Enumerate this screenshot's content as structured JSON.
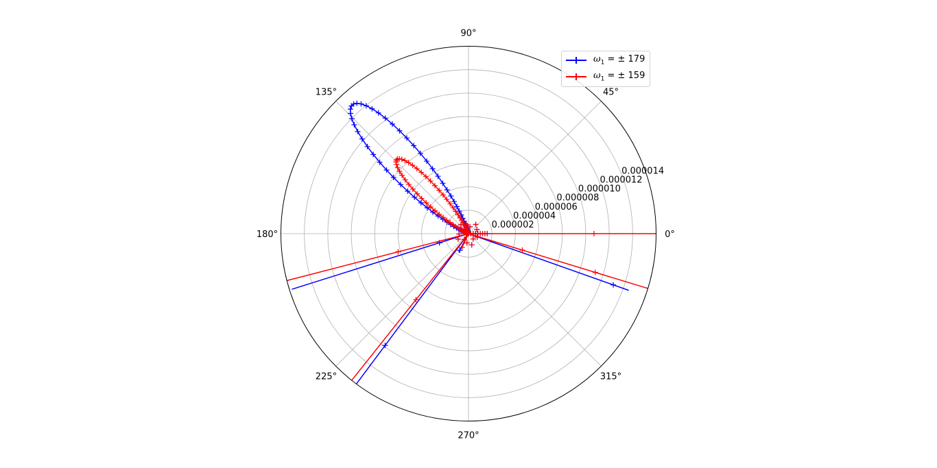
{
  "chart_data": {
    "type": "scatter",
    "projection": "polar",
    "title": "",
    "angle_ticks": [
      "0°",
      "45°",
      "90°",
      "135°",
      "180°",
      "225°",
      "270°",
      "315°"
    ],
    "radial_ticks": [
      "0.000002",
      "0.000004",
      "0.000006",
      "0.000008",
      "0.000010",
      "0.000012",
      "0.000014"
    ],
    "rlim": [
      0,
      1.6e-05
    ],
    "grid": true,
    "legend_position": "top-right",
    "series": [
      {
        "name": "ω1 = ± 179",
        "label_symbol": "ω",
        "label_sub": "1",
        "label_rest": " = ± 179",
        "color": "#0000ff",
        "marker": "+",
        "lobe": {
          "center_angle_deg": 132,
          "max_r": 1.48e-05,
          "half_width_deg": 10,
          "points": 88
        },
        "spikes": [
          {
            "angle_deg": 0,
            "r": 1.6e-06
          },
          {
            "angle_deg": 340.5,
            "r": 1.45e-05
          },
          {
            "angle_deg": 197.5,
            "r": 1.58e-05
          },
          {
            "angle_deg": 233.3,
            "r": 1.6e-05
          },
          {
            "angle_deg": 242.3,
            "r": 1.8e-06
          }
        ],
        "spike_markers": [
          {
            "angle_deg": 340.5,
            "r": 1.31e-05
          },
          {
            "angle_deg": 197.5,
            "r": 2.6e-06
          },
          {
            "angle_deg": 233.3,
            "r": 1.19e-05
          },
          {
            "angle_deg": 242.3,
            "r": 1.6e-06
          }
        ]
      },
      {
        "name": "ω1 = ± 159",
        "label_symbol": "ω",
        "label_sub": "1",
        "label_rest": " = ± 159",
        "color": "#ff0000",
        "marker": "+",
        "lobe": {
          "center_angle_deg": 134,
          "max_r": 8.8e-06,
          "half_width_deg": 8.5,
          "points": 84
        },
        "spikes": [
          {
            "angle_deg": 0,
            "r": 1.6e-05
          },
          {
            "angle_deg": 343.0,
            "r": 1.6e-05
          },
          {
            "angle_deg": 194.5,
            "r": 1.6e-05
          },
          {
            "angle_deg": 231.5,
            "r": 1.6e-05
          },
          {
            "angle_deg": 245.0,
            "r": 1.4e-06
          }
        ],
        "spike_markers": [
          {
            "angle_deg": 0,
            "r": 1.07e-05
          },
          {
            "angle_deg": 343.0,
            "r": 1.13e-05
          },
          {
            "angle_deg": 343.0,
            "r": 4.8e-06
          },
          {
            "angle_deg": 194.5,
            "r": 6.2e-06
          },
          {
            "angle_deg": 231.5,
            "r": 7.2e-06
          },
          {
            "angle_deg": 245.0,
            "r": 1.3e-06
          }
        ]
      }
    ]
  }
}
